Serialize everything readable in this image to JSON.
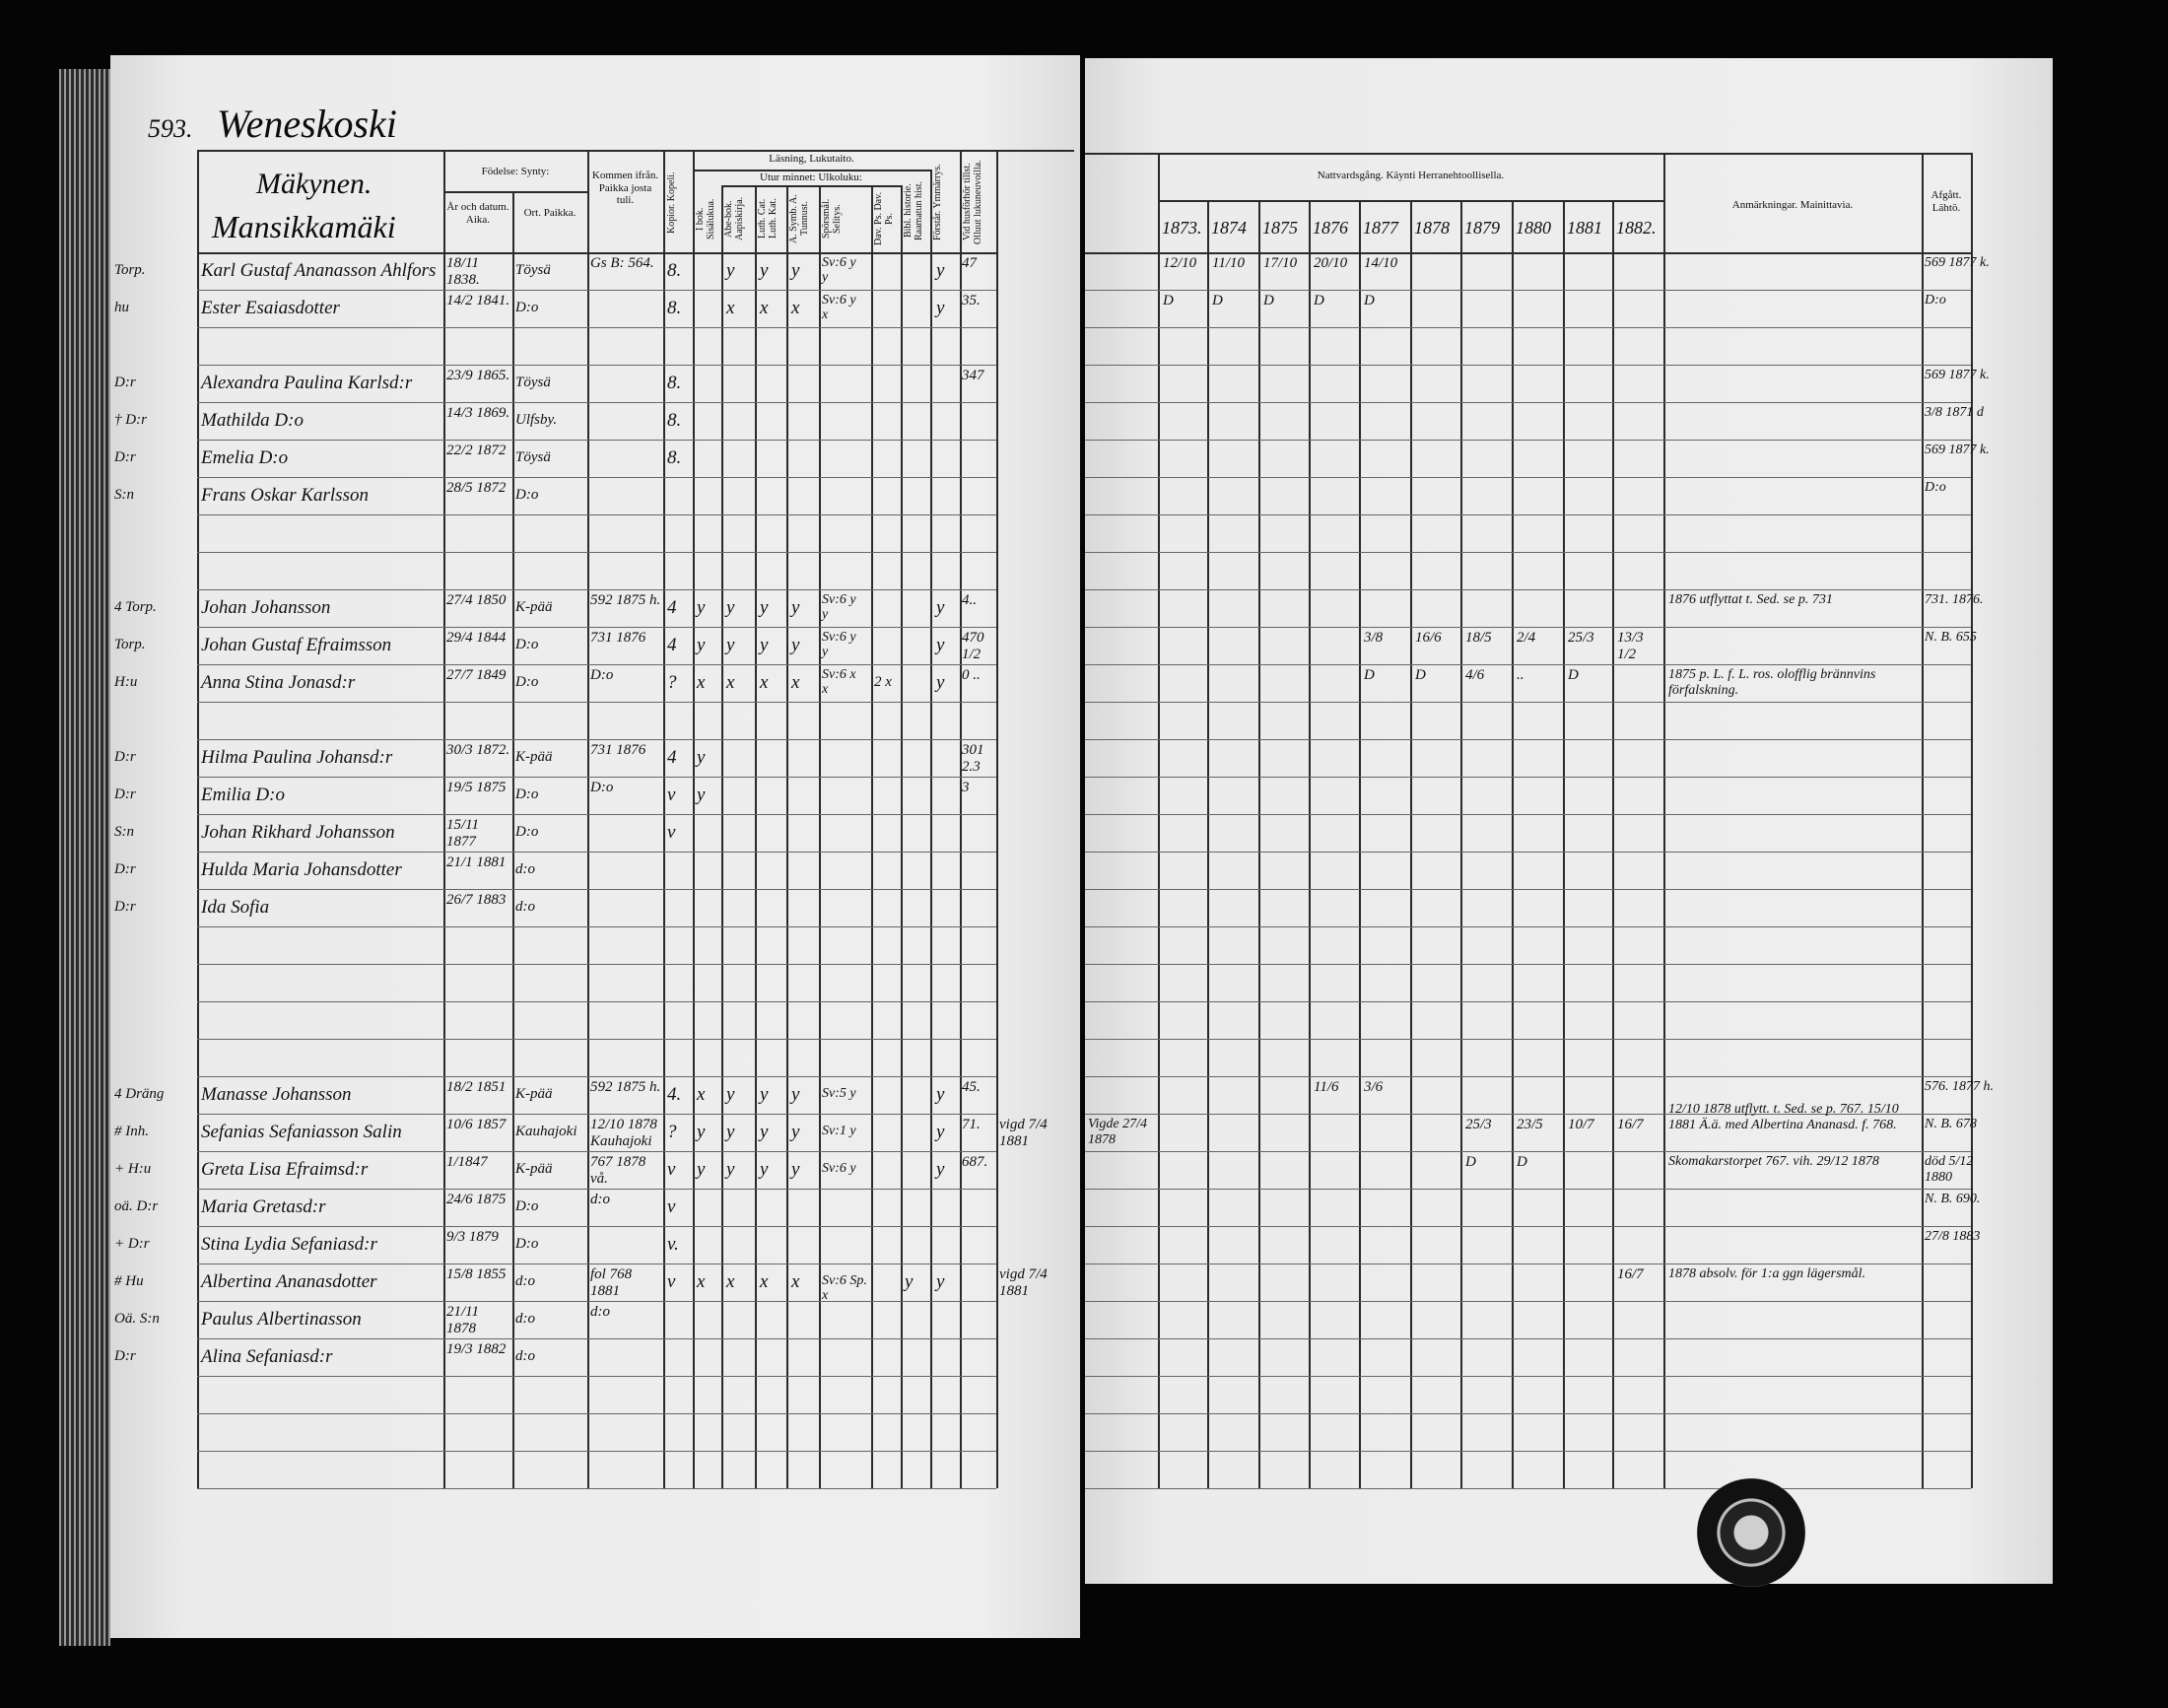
{
  "left": {
    "page_number": "593.",
    "village": "Weneskoski",
    "farm": "Mäkynen.",
    "subfarm": "Mansikkamäki",
    "headers": {
      "birth": "Födelse: Synty:",
      "year_date": "År och datum. Aika.",
      "place": "Ort. Paikka.",
      "from": "Kommen ifrån. Paikka josta tuli.",
      "copies": "Kopior. Kopeli.",
      "reading": "Läsning, Lukutaito.",
      "memory": "Utur minnet: Ulkoluku:",
      "book": "I bok. Sisälukua.",
      "abc": "Abe-bok. Aapiskirja.",
      "cat": "Luth. Cat. Luth. Kat.",
      "symb": "A. Symb. A. Tunnust.",
      "question": "Spörsmål. Selitys.",
      "psalms": "Dav. Ps. Dav. Ps.",
      "bible": "Bibl. historie. Raamatun hist.",
      "understand": "Förstår. Ymmärrys.",
      "exam": "Vid husförhör tillst. Olluut lukuneuvoilla."
    },
    "rows": [
      {
        "r": 0,
        "pre": "Torp.",
        "name": "Karl Gustaf Ananasson Ahlfors",
        "date": "18/11 1838.",
        "place": "Töysä",
        "from": "Gs B: 564.",
        "kop": "8.",
        "r1": "",
        "r2": "y",
        "r3": "y",
        "r4": "y",
        "r5": "y",
        "r6": "Sv:6 y",
        "r7": "",
        "r8": "",
        "forst": "y",
        "husf": "47"
      },
      {
        "r": 1,
        "pre": "hu",
        "name": "Ester Esaiasdotter",
        "date": "14/2 1841.",
        "place": "D:o",
        "from": "",
        "kop": "8.",
        "r1": "",
        "r2": "x",
        "r3": "x",
        "r4": "x",
        "r5": "x",
        "r6": "Sv:6 y",
        "r7": "",
        "r8": "",
        "forst": "y",
        "husf": "35."
      },
      {
        "r": 3,
        "pre": "D:r",
        "name": "Alexandra Paulina Karlsd:r",
        "date": "23/9 1865.",
        "place": "Töysä",
        "from": "",
        "kop": "8.",
        "husf": "347"
      },
      {
        "r": 4,
        "pre": "† D:r",
        "name": "Mathilda  D:o",
        "date": "14/3 1869.",
        "place": "Ulfsby.",
        "from": "",
        "kop": "8."
      },
      {
        "r": 5,
        "pre": "D:r",
        "name": "Emelia  D:o",
        "date": "22/2 1872",
        "place": "Töysä",
        "from": "",
        "kop": "8."
      },
      {
        "r": 6,
        "pre": "S:n",
        "name": "Frans Oskar Karlsson",
        "date": "28/5 1872",
        "place": "D:o",
        "from": ""
      },
      {
        "r": 9,
        "pre": "4 Torp.",
        "name": "Johan Johansson",
        "date": "27/4 1850",
        "place": "K-pää",
        "from": "592 1875 h.",
        "kop": "4",
        "r1": "y",
        "r2": "y",
        "r3": "y",
        "r4": "y",
        "r5": "y",
        "r6": "Sv:6 y",
        "forst": "y",
        "husf": "4.."
      },
      {
        "r": 10,
        "pre": "Torp.",
        "name": "Johan Gustaf Efraimsson",
        "date": "29/4 1844",
        "place": "D:o",
        "from": "731 1876",
        "kop": "4",
        "r1": "y",
        "r2": "y",
        "r3": "y",
        "r4": "y",
        "r5": "y",
        "r6": "Sv:6 y",
        "forst": "y",
        "husf": "470 1/2"
      },
      {
        "r": 11,
        "pre": "H:u",
        "name": "Anna Stina Jonasd:r",
        "date": "27/7 1849",
        "place": "D:o",
        "from": "D:o",
        "kop": "?",
        "r1": "x",
        "r2": "x",
        "r3": "x",
        "r4": "x",
        "r5": "x",
        "r6": "Sv:6 x",
        "r7": "2 x",
        "forst": "y",
        "husf": "0 .."
      },
      {
        "r": 13,
        "pre": "D:r",
        "name": "Hilma Paulina Johansd:r",
        "date": "30/3 1872.",
        "place": "K-pää",
        "from": "731 1876",
        "kop": "4",
        "r1": "y",
        "husf": "301 2.3"
      },
      {
        "r": 14,
        "pre": "D:r",
        "name": "Emilia  D:o",
        "date": "19/5 1875",
        "place": "D:o",
        "from": "D:o",
        "kop": "v",
        "r1": "y",
        "husf": "3"
      },
      {
        "r": 15,
        "pre": "S:n",
        "name": "Johan Rikhard Johansson",
        "date": "15/11 1877",
        "place": "D:o",
        "from": "",
        "kop": "v"
      },
      {
        "r": 16,
        "pre": "D:r",
        "name": "Hulda Maria Johansdotter",
        "date": "21/1 1881",
        "place": "d:o",
        "from": ""
      },
      {
        "r": 17,
        "pre": "D:r",
        "name": "Ida Sofia",
        "date": "26/7 1883",
        "place": "d:o",
        "from": ""
      },
      {
        "r": 22,
        "pre": "4 Dräng",
        "name": "Manasse Johansson",
        "date": "18/2 1851",
        "place": "K-pää",
        "from": "592 1875 h.",
        "kop": "4.",
        "r1": "x",
        "r2": "y",
        "r3": "y",
        "r4": "y",
        "r5": "Sv:5 y",
        "forst": "y",
        "husf": "45."
      },
      {
        "r": 23,
        "pre": "# Inh.",
        "name": "Sefanias Sefaniasson Salin",
        "date": "10/6 1857",
        "place": "Kauhajoki",
        "from": "12/10 1878 Kauhajoki",
        "kop": "?",
        "r1": "y",
        "r2": "y",
        "r3": "y",
        "r4": "y",
        "r5": "Sv:1 y",
        "forst": "y",
        "husf": "71.",
        "extra": "vigd 7/4 1881"
      },
      {
        "r": 24,
        "pre": "+ H:u",
        "name": "Greta Lisa Efraimsd:r",
        "date": "1/1847",
        "place": "K-pää",
        "from": "767 1878 vå.",
        "kop": "v",
        "r1": "y",
        "r2": "y",
        "r3": "y",
        "r4": "y",
        "r5": "Sv:6 y",
        "forst": "y",
        "husf": "687."
      },
      {
        "r": 25,
        "pre": "oä. D:r",
        "name": "Maria Gretasd:r",
        "date": "24/6 1875",
        "place": "D:o",
        "from": "d:o",
        "kop": "v"
      },
      {
        "r": 26,
        "pre": "+ D:r",
        "name": "Stina Lydia Sefaniasd:r",
        "date": "9/3 1879",
        "place": "D:o",
        "from": "",
        "kop": "v."
      },
      {
        "r": 27,
        "pre": "# Hu",
        "name": "Albertina Ananasdotter",
        "date": "15/8 1855",
        "place": "d:o",
        "from": "fol 768 1881",
        "kop": "v",
        "r1": "x",
        "r2": "x",
        "r3": "x",
        "r4": "x",
        "r5": "Sv:6 Sp. x",
        "r8": "y",
        "forst": "y",
        "extra": "vigd 7/4 1881"
      },
      {
        "r": 28,
        "pre": "Oä. S:n",
        "name": "Paulus Albertinasson",
        "date": "21/11 1878",
        "place": "d:o",
        "from": "d:o"
      },
      {
        "r": 29,
        "pre": "D:r",
        "name": "Alina Sefaniasd:r",
        "date": "19/3 1882",
        "place": "d:o",
        "from": ""
      }
    ]
  },
  "right": {
    "communion_header": "Nattvardsgång. Käynti Herranehtoollisella.",
    "years": [
      "1873.",
      "1874",
      "1875",
      "1876",
      "1877",
      "1878",
      "1879",
      "1880",
      "1881",
      "1882."
    ],
    "remarks_header": "Anmärkningar. Mainittavia.",
    "departed_header": "Afgått. Lähtö.",
    "rows": [
      {
        "r": 0,
        "v": [
          "12/10",
          "11/10",
          "17/10",
          "20/10",
          "14/10",
          "",
          "",
          "",
          "",
          ""
        ],
        "rem": "",
        "afg": "569 1877 k."
      },
      {
        "r": 1,
        "v": [
          "D",
          "D",
          "D",
          "D",
          "D",
          "",
          "",
          "",
          "",
          ""
        ],
        "rem": "",
        "afg": "D:o"
      },
      {
        "r": 3,
        "v": [
          "",
          "",
          "",
          "",
          "",
          "",
          "",
          "",
          "",
          ""
        ],
        "rem": "",
        "afg": "569 1877 k."
      },
      {
        "r": 4,
        "v": [
          "",
          "",
          "",
          "",
          "",
          "",
          "",
          "",
          "",
          ""
        ],
        "rem": "",
        "afg": "3/8 1871 d"
      },
      {
        "r": 5,
        "v": [
          "",
          "",
          "",
          "",
          "",
          "",
          "",
          "",
          "",
          ""
        ],
        "rem": "",
        "afg": "569 1877 k."
      },
      {
        "r": 6,
        "v": [
          "",
          "",
          "",
          "",
          "",
          "",
          "",
          "",
          "",
          ""
        ],
        "rem": "",
        "afg": "D:o"
      },
      {
        "r": 9,
        "v": [
          "",
          "",
          "",
          "",
          "",
          "",
          "",
          "",
          "",
          ""
        ],
        "rem": "1876 utflyttat t. Sed. se p. 731",
        "afg": "731. 1876."
      },
      {
        "r": 10,
        "v": [
          "",
          "",
          "",
          "",
          "3/8",
          "16/6",
          "18/5",
          "2/4",
          "25/3",
          "13/3 1/2"
        ],
        "rem": "",
        "afg": "N. B. 655"
      },
      {
        "r": 11,
        "v": [
          "",
          "",
          "",
          "",
          "D",
          "D",
          "4/6",
          "..",
          "D",
          ""
        ],
        "rem": "1875 p. L. f. L. ros. olofflig brännvins förfalskning.",
        "afg": ""
      },
      {
        "r": 22,
        "v": [
          "",
          "",
          "",
          "11/6",
          "3/6",
          "",
          "",
          "",
          "",
          ""
        ],
        "rem": "",
        "afg": "576. 1877 h."
      },
      {
        "r": 23,
        "v": [
          "",
          "",
          "",
          "",
          "",
          "",
          "25/3",
          "23/5",
          "10/7",
          "16/7"
        ],
        "rem": "12/10 1878 utflytt. t. Sed. se p. 767. 15/10 1881 Ä.ä. med Albertina Ananasd. f. 768.",
        "afg": "N. B. 678"
      },
      {
        "r": 24,
        "v": [
          "",
          "",
          "",
          "",
          "",
          "",
          "D",
          "D",
          "",
          ""
        ],
        "rem": "Skomakarstorpet 767. vih. 29/12 1878",
        "afg": "död 5/12 1880"
      },
      {
        "r": 25,
        "v": [
          "",
          "",
          "",
          "",
          "",
          "",
          "",
          "",
          "",
          ""
        ],
        "rem": "",
        "afg": "N. B. 690."
      },
      {
        "r": 26,
        "v": [
          "",
          "",
          "",
          "",
          "",
          "",
          "",
          "",
          "",
          ""
        ],
        "rem": "",
        "afg": "27/8 1883"
      },
      {
        "r": 27,
        "v": [
          "",
          "",
          "",
          "",
          "",
          "",
          "",
          "",
          "",
          "16/7"
        ],
        "rem": "1878 absolv. för 1:a ggn lägersmål.",
        "afg": ""
      }
    ],
    "marriage_note": "Vigde 27/4 1878"
  },
  "colors": {
    "paper": "#ececec",
    "ink": "#151515",
    "background": "#050505"
  }
}
